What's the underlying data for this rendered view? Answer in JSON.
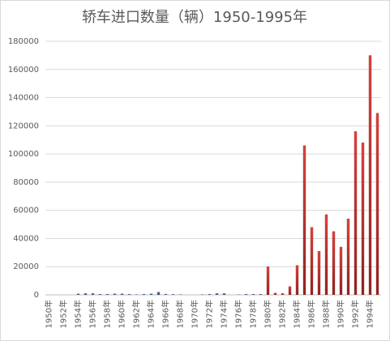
{
  "chart_data": {
    "type": "bar",
    "title": "轿车进口数量（辆）1950-1995年",
    "categories": [
      "1950年",
      null,
      "1952年",
      null,
      "1954年",
      null,
      "1956年",
      null,
      "1958年",
      null,
      "1960年",
      null,
      "1962年",
      null,
      "1964年",
      null,
      "1966年",
      null,
      "1968年",
      null,
      "1970年",
      null,
      "1972年",
      null,
      "1974年",
      null,
      "1976年",
      null,
      "1978年",
      null,
      "1980年",
      null,
      "1982年",
      null,
      "1984年",
      null,
      "1986年",
      null,
      "1988年",
      null,
      "1990年",
      null,
      "1992年",
      null,
      "1994年",
      null
    ],
    "values": [
      0,
      0,
      0,
      0,
      800,
      1000,
      1000,
      500,
      500,
      800,
      800,
      500,
      300,
      500,
      800,
      2000,
      600,
      400,
      300,
      0,
      0,
      300,
      500,
      1000,
      1000,
      0,
      200,
      500,
      500,
      500,
      20000,
      1300,
      1000,
      6000,
      21000,
      106000,
      48000,
      31000,
      57000,
      45000,
      34000,
      54000,
      116000,
      108000,
      170000,
      129000
    ],
    "colors": [
      "#4a7ebb",
      "#d9403a"
    ],
    "color_from_index": 30,
    "ylim": [
      0,
      180000
    ],
    "yticks": [
      0,
      20000,
      40000,
      60000,
      80000,
      100000,
      120000,
      140000,
      160000,
      180000
    ],
    "grid": true
  }
}
